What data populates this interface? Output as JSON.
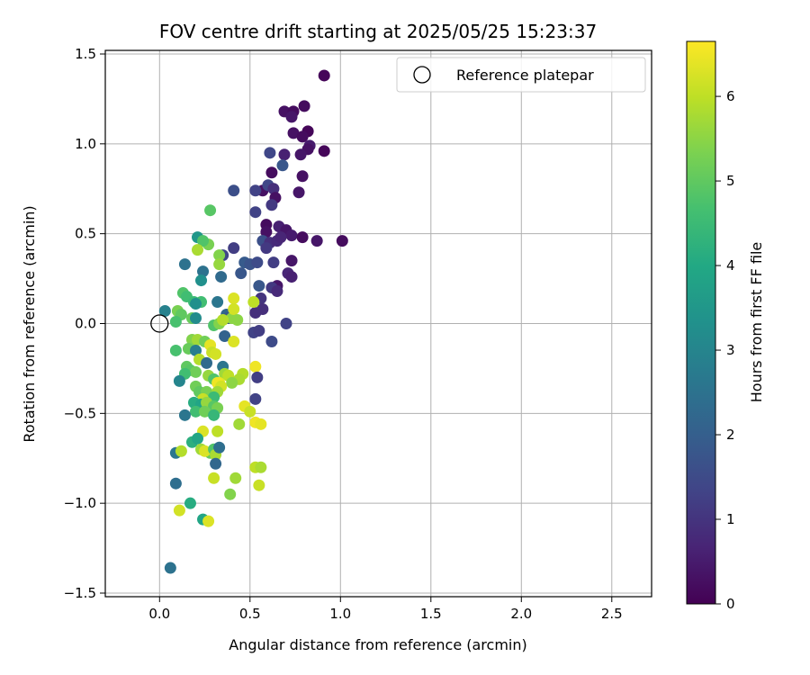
{
  "chart_data": {
    "type": "scatter",
    "title": "FOV centre drift starting at 2025/05/25 15:23:37",
    "xlabel": "Angular distance from reference (arcmin)",
    "ylabel": "Rotation from reference (arcmin)",
    "xlim": [
      -0.3,
      2.72
    ],
    "ylim": [
      -1.52,
      1.52
    ],
    "xticks": [
      0.0,
      0.5,
      1.0,
      1.5,
      2.0,
      2.5
    ],
    "xtick_labels": [
      "0.0",
      "0.5",
      "1.0",
      "1.5",
      "2.0",
      "2.5"
    ],
    "yticks": [
      -1.5,
      -1.0,
      -0.5,
      0.0,
      0.5,
      1.0,
      1.5
    ],
    "ytick_labels": [
      "−1.5",
      "−1.0",
      "−0.5",
      "0.0",
      "0.5",
      "1.0",
      "1.5"
    ],
    "grid": true,
    "legend": {
      "position": "top-right",
      "entries": [
        "Reference platepar"
      ]
    },
    "reference_point": {
      "x": 0.0,
      "y": 0.0,
      "label": "Reference platepar"
    },
    "colorbar": {
      "label": "Hours from first FF file",
      "range": [
        0,
        6.65
      ],
      "ticks": [
        0,
        1,
        2,
        3,
        4,
        5,
        6
      ],
      "tick_labels": [
        "0",
        "1",
        "2",
        "3",
        "4",
        "5",
        "6"
      ],
      "colormap": "viridis"
    },
    "series": [
      {
        "points": [
          [
            0.91,
            1.38,
            0.1
          ],
          [
            0.8,
            1.21,
            0.2
          ],
          [
            0.69,
            1.18,
            0.3
          ],
          [
            0.74,
            1.18,
            0.2
          ],
          [
            0.73,
            1.15,
            0.4
          ],
          [
            0.82,
            1.07,
            0.1
          ],
          [
            0.74,
            1.06,
            0.3
          ],
          [
            0.79,
            1.04,
            0.2
          ],
          [
            0.83,
            0.99,
            0.5
          ],
          [
            0.82,
            0.97,
            0.3
          ],
          [
            0.91,
            0.96,
            0.1
          ],
          [
            0.78,
            0.94,
            0.4
          ],
          [
            0.69,
            0.94,
            0.6
          ],
          [
            0.61,
            0.95,
            1.4
          ],
          [
            0.79,
            0.82,
            0.3
          ],
          [
            0.62,
            0.84,
            0.2
          ],
          [
            0.68,
            0.88,
            1.8
          ],
          [
            0.57,
            0.74,
            0.3
          ],
          [
            0.53,
            0.74,
            1.3
          ],
          [
            0.6,
            0.77,
            1.4
          ],
          [
            0.63,
            0.75,
            0.9
          ],
          [
            0.77,
            0.73,
            0.4
          ],
          [
            0.64,
            0.7,
            0.3
          ],
          [
            0.62,
            0.66,
            1.1
          ],
          [
            0.41,
            0.74,
            1.6
          ],
          [
            0.53,
            0.62,
            1.3
          ],
          [
            0.59,
            0.55,
            0.2
          ],
          [
            0.59,
            0.51,
            0.3
          ],
          [
            0.66,
            0.54,
            0.6
          ],
          [
            0.7,
            0.52,
            0.4
          ],
          [
            0.73,
            0.49,
            0.5
          ],
          [
            0.79,
            0.48,
            0.2
          ],
          [
            0.87,
            0.46,
            0.4
          ],
          [
            1.01,
            0.46,
            0.2
          ],
          [
            0.57,
            0.46,
            1.6
          ],
          [
            0.61,
            0.45,
            0.9
          ],
          [
            0.65,
            0.46,
            0.8
          ],
          [
            0.67,
            0.48,
            0.7
          ],
          [
            0.59,
            0.42,
            1.1
          ],
          [
            0.41,
            0.42,
            1.2
          ],
          [
            0.35,
            0.38,
            1.4
          ],
          [
            0.21,
            0.48,
            3.5
          ],
          [
            0.28,
            0.63,
            4.9
          ],
          [
            0.27,
            0.44,
            5.3
          ],
          [
            0.24,
            0.46,
            4.8
          ],
          [
            0.21,
            0.41,
            5.8
          ],
          [
            0.33,
            0.38,
            5.4
          ],
          [
            0.33,
            0.33,
            5.6
          ],
          [
            0.14,
            0.33,
            2.5
          ],
          [
            0.24,
            0.29,
            2.5
          ],
          [
            0.34,
            0.26,
            2.3
          ],
          [
            0.45,
            0.28,
            1.8
          ],
          [
            0.47,
            0.34,
            1.9
          ],
          [
            0.5,
            0.33,
            1.7
          ],
          [
            0.54,
            0.34,
            1.5
          ],
          [
            0.63,
            0.34,
            1.2
          ],
          [
            0.73,
            0.35,
            0.4
          ],
          [
            0.71,
            0.28,
            0.7
          ],
          [
            0.73,
            0.26,
            0.6
          ],
          [
            0.65,
            0.21,
            0.4
          ],
          [
            0.55,
            0.21,
            1.8
          ],
          [
            0.62,
            0.2,
            1.1
          ],
          [
            0.65,
            0.18,
            0.8
          ],
          [
            0.23,
            0.24,
            3.3
          ],
          [
            0.56,
            0.14,
            1.0
          ],
          [
            0.53,
            0.06,
            0.9
          ],
          [
            0.57,
            0.08,
            0.9
          ],
          [
            0.41,
            0.14,
            6.3
          ],
          [
            0.52,
            0.12,
            6.0
          ],
          [
            0.13,
            0.17,
            4.8
          ],
          [
            0.15,
            0.15,
            4.6
          ],
          [
            0.19,
            0.12,
            4.5
          ],
          [
            0.23,
            0.12,
            4.6
          ],
          [
            0.32,
            0.12,
            2.6
          ],
          [
            0.2,
            0.11,
            3.3
          ],
          [
            0.03,
            0.07,
            2.9
          ],
          [
            0.1,
            0.07,
            5.3
          ],
          [
            0.12,
            0.05,
            5.0
          ],
          [
            0.09,
            0.01,
            4.7
          ],
          [
            0.18,
            0.03,
            5.1
          ],
          [
            0.2,
            0.03,
            3.2
          ],
          [
            0.37,
            0.05,
            2.2
          ],
          [
            0.38,
            0.03,
            1.8
          ],
          [
            0.4,
            0.03,
            5.5
          ],
          [
            0.41,
            0.08,
            6.2
          ],
          [
            0.3,
            -0.01,
            4.8
          ],
          [
            0.33,
            0.0,
            5.4
          ],
          [
            0.35,
            0.02,
            5.9
          ],
          [
            0.43,
            0.02,
            5.5
          ],
          [
            0.52,
            -0.05,
            1.3
          ],
          [
            0.55,
            -0.04,
            1.2
          ],
          [
            0.7,
            0.0,
            1.3
          ],
          [
            0.36,
            -0.07,
            2.1
          ],
          [
            0.41,
            -0.1,
            6.3
          ],
          [
            0.62,
            -0.1,
            1.5
          ],
          [
            0.18,
            -0.09,
            5.4
          ],
          [
            0.21,
            -0.09,
            5.7
          ],
          [
            0.25,
            -0.1,
            5.2
          ],
          [
            0.28,
            -0.12,
            6.4
          ],
          [
            0.16,
            -0.14,
            5.1
          ],
          [
            0.09,
            -0.15,
            4.7
          ],
          [
            0.2,
            -0.15,
            2.8
          ],
          [
            0.29,
            -0.16,
            6.1
          ],
          [
            0.31,
            -0.17,
            6.2
          ],
          [
            0.22,
            -0.2,
            5.9
          ],
          [
            0.26,
            -0.22,
            2.3
          ],
          [
            0.15,
            -0.24,
            5.0
          ],
          [
            0.35,
            -0.24,
            2.6
          ],
          [
            0.53,
            -0.24,
            6.5
          ],
          [
            0.17,
            -0.26,
            4.9
          ],
          [
            0.2,
            -0.27,
            5.2
          ],
          [
            0.14,
            -0.28,
            4.6
          ],
          [
            0.27,
            -0.29,
            5.6
          ],
          [
            0.3,
            -0.31,
            4.8
          ],
          [
            0.36,
            -0.28,
            5.7
          ],
          [
            0.38,
            -0.29,
            6.0
          ],
          [
            0.46,
            -0.28,
            5.9
          ],
          [
            0.44,
            -0.31,
            5.8
          ],
          [
            0.33,
            -0.33,
            6.4
          ],
          [
            0.4,
            -0.33,
            5.5
          ],
          [
            0.32,
            -0.33,
            6.5
          ],
          [
            0.34,
            -0.35,
            6.2
          ],
          [
            0.54,
            -0.3,
            1.2
          ],
          [
            0.11,
            -0.32,
            3.0
          ],
          [
            0.2,
            -0.35,
            5.2
          ],
          [
            0.22,
            -0.38,
            5.0
          ],
          [
            0.26,
            -0.38,
            5.3
          ],
          [
            0.32,
            -0.38,
            5.7
          ],
          [
            0.3,
            -0.41,
            4.5
          ],
          [
            0.24,
            -0.42,
            6.1
          ],
          [
            0.53,
            -0.42,
            1.3
          ],
          [
            0.19,
            -0.44,
            4.1
          ],
          [
            0.23,
            -0.45,
            3.9
          ],
          [
            0.26,
            -0.44,
            5.6
          ],
          [
            0.3,
            -0.46,
            4.9
          ],
          [
            0.32,
            -0.47,
            5.3
          ],
          [
            0.47,
            -0.46,
            6.4
          ],
          [
            0.5,
            -0.49,
            6.1
          ],
          [
            0.2,
            -0.49,
            4.6
          ],
          [
            0.25,
            -0.49,
            5.2
          ],
          [
            0.14,
            -0.51,
            2.6
          ],
          [
            0.3,
            -0.51,
            4.4
          ],
          [
            0.44,
            -0.56,
            5.7
          ],
          [
            0.53,
            -0.55,
            6.5
          ],
          [
            0.56,
            -0.56,
            6.4
          ],
          [
            0.24,
            -0.6,
            6.3
          ],
          [
            0.32,
            -0.6,
            6.0
          ],
          [
            0.18,
            -0.66,
            4.2
          ],
          [
            0.21,
            -0.64,
            3.9
          ],
          [
            0.09,
            -0.72,
            2.6
          ],
          [
            0.12,
            -0.71,
            5.9
          ],
          [
            0.23,
            -0.7,
            5.7
          ],
          [
            0.28,
            -0.72,
            5.1
          ],
          [
            0.25,
            -0.71,
            6.3
          ],
          [
            0.3,
            -0.7,
            4.8
          ],
          [
            0.31,
            -0.73,
            5.8
          ],
          [
            0.33,
            -0.69,
            2.4
          ],
          [
            0.31,
            -0.78,
            2.2
          ],
          [
            0.53,
            -0.8,
            6.0
          ],
          [
            0.56,
            -0.8,
            5.8
          ],
          [
            0.09,
            -0.89,
            2.4
          ],
          [
            0.3,
            -0.86,
            6.1
          ],
          [
            0.42,
            -0.86,
            5.7
          ],
          [
            0.55,
            -0.9,
            6.1
          ],
          [
            0.39,
            -0.95,
            5.4
          ],
          [
            0.17,
            -1.0,
            4.1
          ],
          [
            0.11,
            -1.04,
            6.2
          ],
          [
            0.24,
            -1.09,
            3.9
          ],
          [
            0.27,
            -1.1,
            6.3
          ],
          [
            0.06,
            -1.36,
            2.5
          ]
        ]
      }
    ]
  }
}
